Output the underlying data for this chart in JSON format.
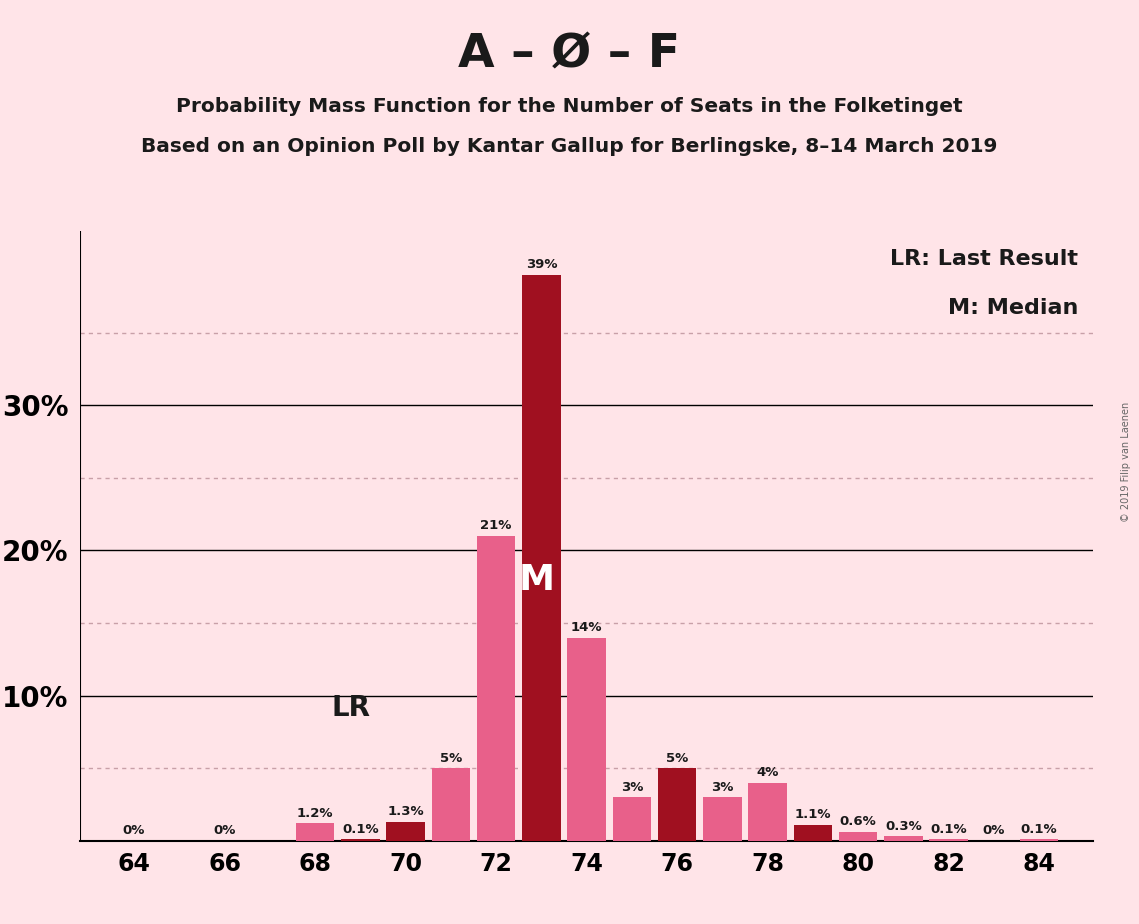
{
  "title_main": "A – Ø – F",
  "title_sub1": "Probability Mass Function for the Number of Seats in the Folketinget",
  "title_sub2": "Based on an Opinion Poll by Kantar Gallup for Berlingske, 8–14 March 2019",
  "background_color": "#FFE4E8",
  "seats": [
    64,
    65,
    66,
    67,
    68,
    69,
    70,
    71,
    72,
    73,
    74,
    75,
    76,
    77,
    78,
    79,
    80,
    81,
    82,
    83,
    84
  ],
  "values": [
    0.0,
    0.0,
    0.0,
    0.0,
    1.2,
    0.1,
    1.3,
    5.0,
    21.0,
    39.0,
    14.0,
    3.0,
    5.0,
    3.0,
    4.0,
    1.1,
    0.6,
    0.3,
    0.1,
    0.0,
    0.1
  ],
  "labels": [
    "0%",
    "",
    "0%",
    "",
    "1.2%",
    "0.1%",
    "1.3%",
    "5%",
    "21%",
    "39%",
    "14%",
    "3%",
    "5%",
    "3%",
    "4%",
    "1.1%",
    "0.6%",
    "0.3%",
    "0.1%",
    "0%",
    "0.1%"
  ],
  "show_label": [
    true,
    false,
    true,
    false,
    true,
    true,
    true,
    true,
    true,
    true,
    true,
    true,
    true,
    true,
    true,
    true,
    true,
    true,
    true,
    true,
    true
  ],
  "colors": [
    "#E8608A",
    "#E8608A",
    "#E8608A",
    "#E8608A",
    "#E8608A",
    "#A01020",
    "#A01020",
    "#E8608A",
    "#E8608A",
    "#A01020",
    "#E8608A",
    "#E8608A",
    "#A01020",
    "#E8608A",
    "#E8608A",
    "#A01020",
    "#E8608A",
    "#E8608A",
    "#E8608A",
    "#E8608A",
    "#E8608A"
  ],
  "xtick_positions": [
    64,
    66,
    68,
    70,
    72,
    74,
    76,
    78,
    80,
    82,
    84
  ],
  "solid_yticks": [
    10,
    20,
    30
  ],
  "dotted_yticks": [
    5,
    15,
    25,
    35
  ],
  "median_seat": 73,
  "lr_seat": 70,
  "legend_lr": "LR: Last Result",
  "legend_m": "M: Median",
  "watermark": "© 2019 Filip van Laenen",
  "color_dark_red": "#A01020",
  "color_pink": "#E8608A",
  "grid_dotted_color": "#C8A0A8",
  "grid_solid_color": "#000000"
}
